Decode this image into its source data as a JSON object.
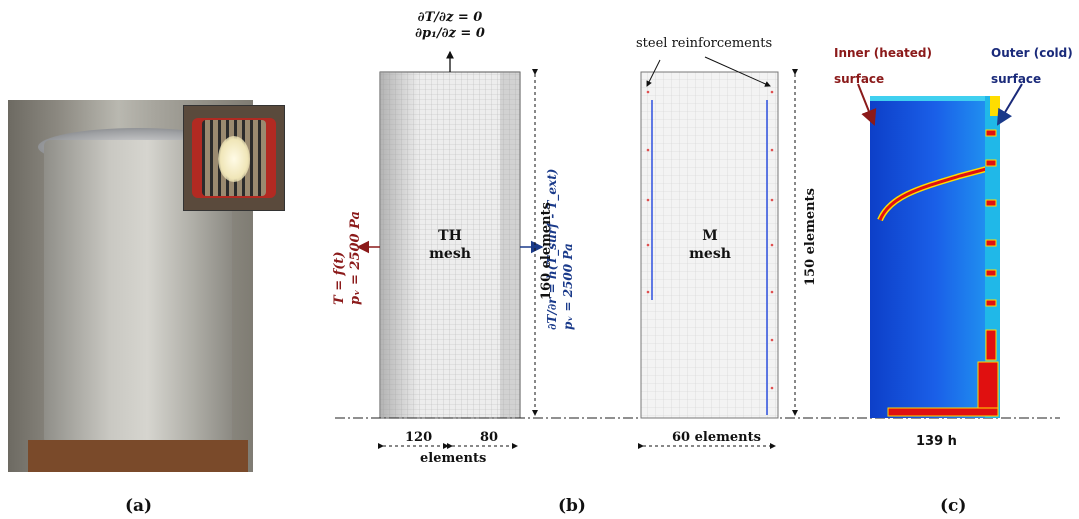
{
  "panel_labels": {
    "a": "(a)",
    "b": "(b)",
    "c": "(c)"
  },
  "th_mesh": {
    "title_line1": "TH",
    "title_line2": "mesh",
    "top_bc_line1": "∂T/∂z = 0",
    "top_bc_line2": "∂p₁/∂z = 0",
    "left_bc_line1": "T = f(t)",
    "left_bc_line2": "pᵥ = 2500 Pa",
    "right_bc_line1": "∂T/∂r = h(T_surf - T_ext)",
    "right_bc_line2": "pᵥ = 2500 Pa",
    "vertical_elements": "160 elements",
    "horizontal_left": "120",
    "horizontal_right": "80",
    "horizontal_label": "elements"
  },
  "m_mesh": {
    "title_line1": "M",
    "title_line2": "mesh",
    "steel_label": "steel reinforcements",
    "vertical_elements": "150 elements",
    "horizontal_elements": "60 elements"
  },
  "result": {
    "inner_label_line1": "Inner (heated)",
    "inner_label_line2": "surface",
    "outer_label_line1": "Outer (cold)",
    "outer_label_line2": "surface",
    "time_label": "139 h"
  },
  "colors": {
    "inner_label": "#8b1a1a",
    "outer_label": "#1a2a7a",
    "left_bc": "#8b1a1a",
    "right_bc": "#1a3a8a",
    "field_blue": "#1560e0",
    "crack_red": "#e01010"
  }
}
